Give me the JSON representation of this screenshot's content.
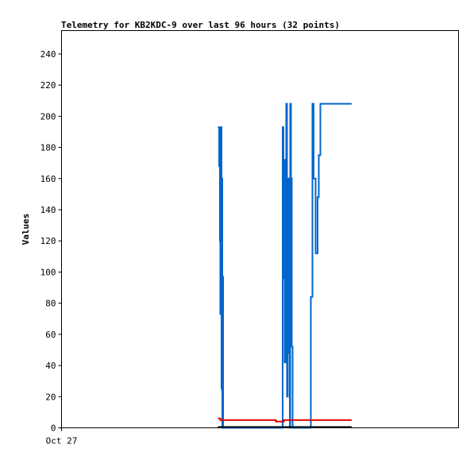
{
  "chart_data": {
    "type": "line",
    "title": "Telemetry for KB2KDC-9 over last 96 hours (32 points)",
    "xlabel": "",
    "ylabel": "Values",
    "x_tick_labels": [
      "Oct 27"
    ],
    "ylim": [
      0,
      255
    ],
    "y_ticks": [
      0,
      20,
      40,
      60,
      80,
      100,
      120,
      140,
      160,
      180,
      200,
      220,
      240
    ],
    "grid": false,
    "legend": "none",
    "x_domain": [
      0,
      1
    ],
    "series": [
      {
        "color": "#0066cc",
        "points": [
          [
            0.395,
            193
          ],
          [
            0.397,
            168
          ],
          [
            0.399,
            120
          ],
          [
            0.4,
            73
          ],
          [
            0.401,
            193
          ],
          [
            0.403,
            25
          ],
          [
            0.404,
            160
          ],
          [
            0.405,
            0
          ],
          [
            0.406,
            97
          ],
          [
            0.407,
            0
          ],
          [
            0.556,
            0
          ],
          [
            0.557,
            193
          ],
          [
            0.559,
            96
          ],
          [
            0.561,
            172
          ],
          [
            0.562,
            42
          ],
          [
            0.564,
            124
          ],
          [
            0.566,
            208
          ],
          [
            0.568,
            20
          ],
          [
            0.57,
            160
          ],
          [
            0.572,
            48
          ],
          [
            0.575,
            0
          ],
          [
            0.576,
            208
          ],
          [
            0.578,
            160
          ],
          [
            0.58,
            52
          ],
          [
            0.582,
            0
          ],
          [
            0.625,
            0
          ],
          [
            0.628,
            84
          ],
          [
            0.632,
            208
          ],
          [
            0.635,
            160
          ],
          [
            0.64,
            112
          ],
          [
            0.645,
            148
          ],
          [
            0.648,
            175
          ],
          [
            0.652,
            208
          ],
          [
            0.665,
            208
          ],
          [
            0.7,
            208
          ],
          [
            0.73,
            208
          ]
        ]
      },
      {
        "color": "#dd0000",
        "points": [
          [
            0.395,
            6
          ],
          [
            0.4,
            5
          ],
          [
            0.45,
            5
          ],
          [
            0.52,
            5
          ],
          [
            0.54,
            4
          ],
          [
            0.556,
            4
          ],
          [
            0.56,
            5
          ],
          [
            0.6,
            5
          ],
          [
            0.65,
            5
          ],
          [
            0.7,
            5
          ],
          [
            0.73,
            5
          ]
        ]
      },
      {
        "color": "#000000",
        "points": [
          [
            0.395,
            0.5
          ],
          [
            0.5,
            0.5
          ],
          [
            0.6,
            0.5
          ],
          [
            0.73,
            0.5
          ]
        ]
      }
    ]
  }
}
